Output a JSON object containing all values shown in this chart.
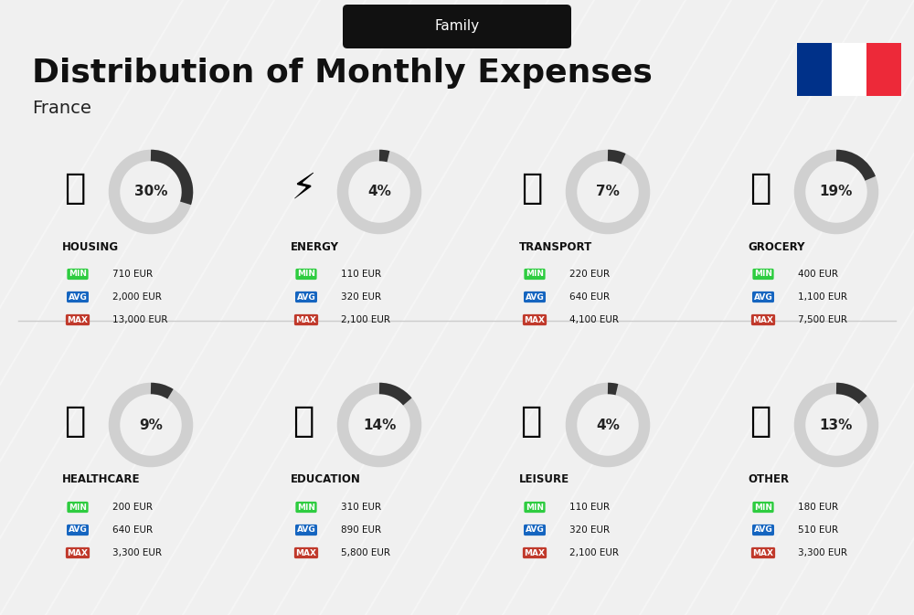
{
  "title": "Distribution of Monthly Expenses",
  "subtitle": "Family",
  "country": "France",
  "background_color": "#f0f0f0",
  "categories": [
    {
      "name": "HOUSING",
      "pct": 30,
      "min": "710 EUR",
      "avg": "2,000 EUR",
      "max": "13,000 EUR",
      "row": 0,
      "col": 0
    },
    {
      "name": "ENERGY",
      "pct": 4,
      "min": "110 EUR",
      "avg": "320 EUR",
      "max": "2,100 EUR",
      "row": 0,
      "col": 1
    },
    {
      "name": "TRANSPORT",
      "pct": 7,
      "min": "220 EUR",
      "avg": "640 EUR",
      "max": "4,100 EUR",
      "row": 0,
      "col": 2
    },
    {
      "name": "GROCERY",
      "pct": 19,
      "min": "400 EUR",
      "avg": "1,100 EUR",
      "max": "7,500 EUR",
      "row": 0,
      "col": 3
    },
    {
      "name": "HEALTHCARE",
      "pct": 9,
      "min": "200 EUR",
      "avg": "640 EUR",
      "max": "3,300 EUR",
      "row": 1,
      "col": 0
    },
    {
      "name": "EDUCATION",
      "pct": 14,
      "min": "310 EUR",
      "avg": "890 EUR",
      "max": "5,800 EUR",
      "row": 1,
      "col": 1
    },
    {
      "name": "LEISURE",
      "pct": 4,
      "min": "110 EUR",
      "avg": "320 EUR",
      "max": "2,100 EUR",
      "row": 1,
      "col": 2
    },
    {
      "name": "OTHER",
      "pct": 13,
      "min": "180 EUR",
      "avg": "510 EUR",
      "max": "3,300 EUR",
      "row": 1,
      "col": 3
    }
  ],
  "color_min": "#2ecc40",
  "color_avg": "#1565c0",
  "color_max": "#c0392b",
  "donut_bg": "#d0d0d0",
  "donut_fg": "#333333",
  "flag_blue": "#003189",
  "flag_white": "#ffffff",
  "flag_red": "#ed2939"
}
